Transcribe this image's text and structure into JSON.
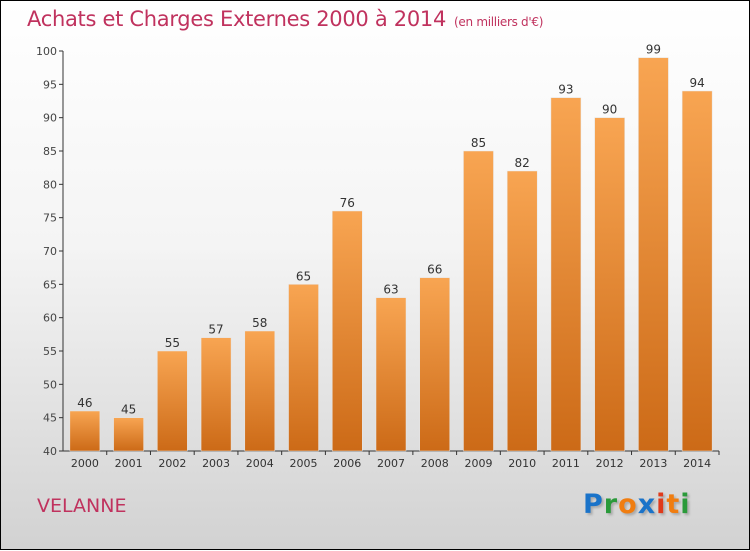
{
  "chart_data": {
    "type": "bar",
    "title": "Achats et Charges Externes 2000 à 2014",
    "unit": "(en milliers d'€)",
    "categories": [
      "2000",
      "2001",
      "2002",
      "2003",
      "2004",
      "2005",
      "2006",
      "2007",
      "2008",
      "2009",
      "2010",
      "2011",
      "2012",
      "2013",
      "2014"
    ],
    "values": [
      46,
      45,
      55,
      57,
      58,
      65,
      76,
      63,
      66,
      85,
      82,
      93,
      90,
      99,
      94
    ],
    "ylim": [
      40,
      100
    ],
    "yticks": [
      40,
      45,
      50,
      55,
      60,
      65,
      70,
      75,
      80,
      85,
      90,
      95,
      100
    ],
    "xlabel": "",
    "ylabel": "",
    "grid": false,
    "bar_color_top": "#f8a552",
    "bar_color_bottom": "#cc6a17"
  },
  "commune": "VELANNE",
  "logo": {
    "letters": [
      "P",
      "r",
      "o",
      "x",
      "i",
      "t",
      "i"
    ],
    "colors": [
      "#1a73c9",
      "#2a9a3a",
      "#f07d10",
      "#1a73c9",
      "#e03a1a",
      "#f07d10",
      "#2a9a3a"
    ]
  }
}
